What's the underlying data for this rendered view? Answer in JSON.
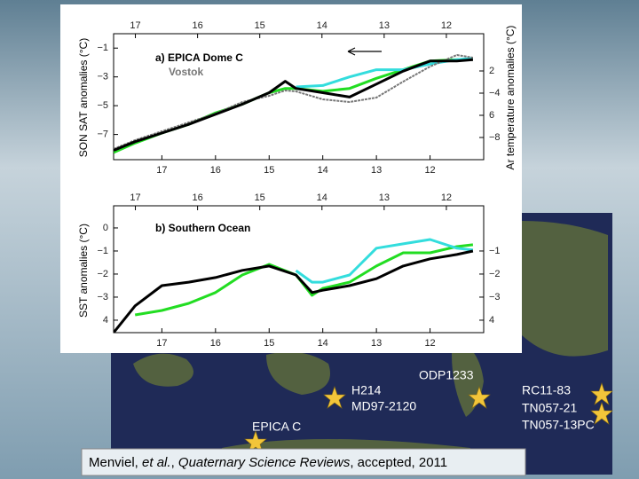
{
  "chart_data": [
    {
      "type": "line",
      "title": "a) EPICA Dome C",
      "ylabel": "SON SAT anomalies (°C)",
      "y2label": "Ar temperature anomalies (°C)",
      "x": [
        17.9,
        17.5,
        17,
        16.5,
        16,
        15.5,
        15,
        14.7,
        14.5,
        14,
        13.5,
        13,
        12.5,
        12,
        11.5,
        11.2
      ],
      "xlim": [
        17.9,
        11
      ],
      "xticks": [
        17,
        16,
        15,
        14,
        13,
        12
      ],
      "x2lim": [
        17.35,
        11.4
      ],
      "x2ticks": [
        17,
        16,
        15,
        14,
        13,
        12
      ],
      "ylim": [
        -8.75,
        0
      ],
      "yticks": [
        {
          "value": -1,
          "label": "−1"
        },
        {
          "value": -3,
          "label": "−3"
        },
        {
          "value": -5,
          "label": "−5"
        },
        {
          "value": -7,
          "label": "−7"
        }
      ],
      "y2lim": [
        -10,
        1.36
      ],
      "y2ticks": [
        {
          "value": -2,
          "label": "2"
        },
        {
          "value": -4,
          "label": "−4"
        },
        {
          "value": -6,
          "label": "6"
        },
        {
          "value": -8,
          "label": "−8"
        }
      ],
      "series": [
        {
          "color": "#22dd22",
          "values": [
            -8.25,
            -7.6,
            -6.9,
            -6.3,
            -5.5,
            -4.9,
            -4.1,
            -3.8,
            -3.8,
            -4,
            -3.8,
            -3.1,
            -2.5,
            -1.9,
            -1.8,
            -1.75
          ]
        },
        {
          "color": "#33dddd",
          "values": [
            null,
            null,
            null,
            null,
            null,
            null,
            null,
            null,
            -3.7,
            -3.6,
            -3,
            -2.5,
            -2.5,
            -2.1,
            -1.8,
            -1.7
          ]
        },
        {
          "name": "Vostok",
          "color": "#777777",
          "axis": "y2",
          "values": [
            -9.04,
            -8.24,
            -7.44,
            -6.64,
            -5.84,
            -4.8,
            -4.24,
            -3.76,
            -3.84,
            -4.56,
            -4.8,
            -4.4,
            -2.96,
            -1.6,
            -0.56,
            -0.8
          ]
        },
        {
          "color": "#000000",
          "values": [
            -8.1,
            -7.5,
            -6.9,
            -6.3,
            -5.6,
            -4.9,
            -4.1,
            -3.3,
            -3.8,
            -4.1,
            -4.4,
            -3.5,
            -2.6,
            -1.9,
            -1.9,
            -1.8
          ]
        }
      ]
    },
    {
      "type": "line",
      "title": "b) Southern Ocean",
      "ylabel": "SST anomalies (°C)",
      "x": [
        17.9,
        17.5,
        17,
        16.5,
        16,
        15.5,
        15,
        14.5,
        14.2,
        14,
        13.5,
        13,
        12.5,
        12,
        11.5,
        11.2
      ],
      "xlim": [
        17.9,
        11
      ],
      "xticks": [
        17,
        16,
        15,
        14,
        13,
        12
      ],
      "x2lim": [
        17.35,
        11.4
      ],
      "x2ticks": [
        17,
        16,
        15,
        14,
        13,
        12
      ],
      "ylim": [
        -4.54,
        0.96
      ],
      "yticks": [
        0,
        {
          "value": -1,
          "label": "−1"
        },
        {
          "value": -2,
          "label": "−2"
        },
        {
          "value": -3,
          "label": "−3"
        },
        {
          "value": -4,
          "label": "4"
        }
      ],
      "y2lim": [
        -4.54,
        0.96
      ],
      "y2ticks": [
        {
          "value": -1,
          "label": "−1"
        },
        {
          "value": -2,
          "label": "−2"
        },
        {
          "value": -3,
          "label": "−3"
        },
        {
          "value": -4,
          "label": "4"
        }
      ],
      "series": [
        {
          "color": "#22dd22",
          "values": [
            null,
            -3.77,
            -3.58,
            -3.27,
            -2.8,
            -2.04,
            -1.58,
            -2.04,
            -2.92,
            -2.62,
            -2.35,
            -1.65,
            -1.08,
            -1.08,
            -0.81,
            -0.73
          ]
        },
        {
          "color": "#33dddd",
          "values": [
            null,
            null,
            null,
            null,
            null,
            null,
            null,
            -1.85,
            -2.35,
            -2.35,
            -2.04,
            -0.88,
            -0.69,
            -0.5,
            -0.88,
            -0.96
          ]
        },
        {
          "color": "#000000",
          "values": [
            -4.54,
            -3.38,
            -2.5,
            -2.35,
            -2.15,
            -1.84,
            -1.65,
            -2.04,
            -2.8,
            -2.7,
            -2.5,
            -2.2,
            -1.65,
            -1.34,
            -1.15,
            -1
          ]
        }
      ]
    }
  ],
  "map": {
    "labels": [
      "ODP1233",
      "H214",
      "MD97-2120",
      "EPICA C",
      "RC11-83",
      "TN057-21",
      "TN057-13PC"
    ]
  },
  "citation": {
    "author": "Menviel, ",
    "etal": "et al.",
    "sep": ", ",
    "journal": "Quaternary Science Reviews",
    "rest": ", accepted, 2011"
  }
}
